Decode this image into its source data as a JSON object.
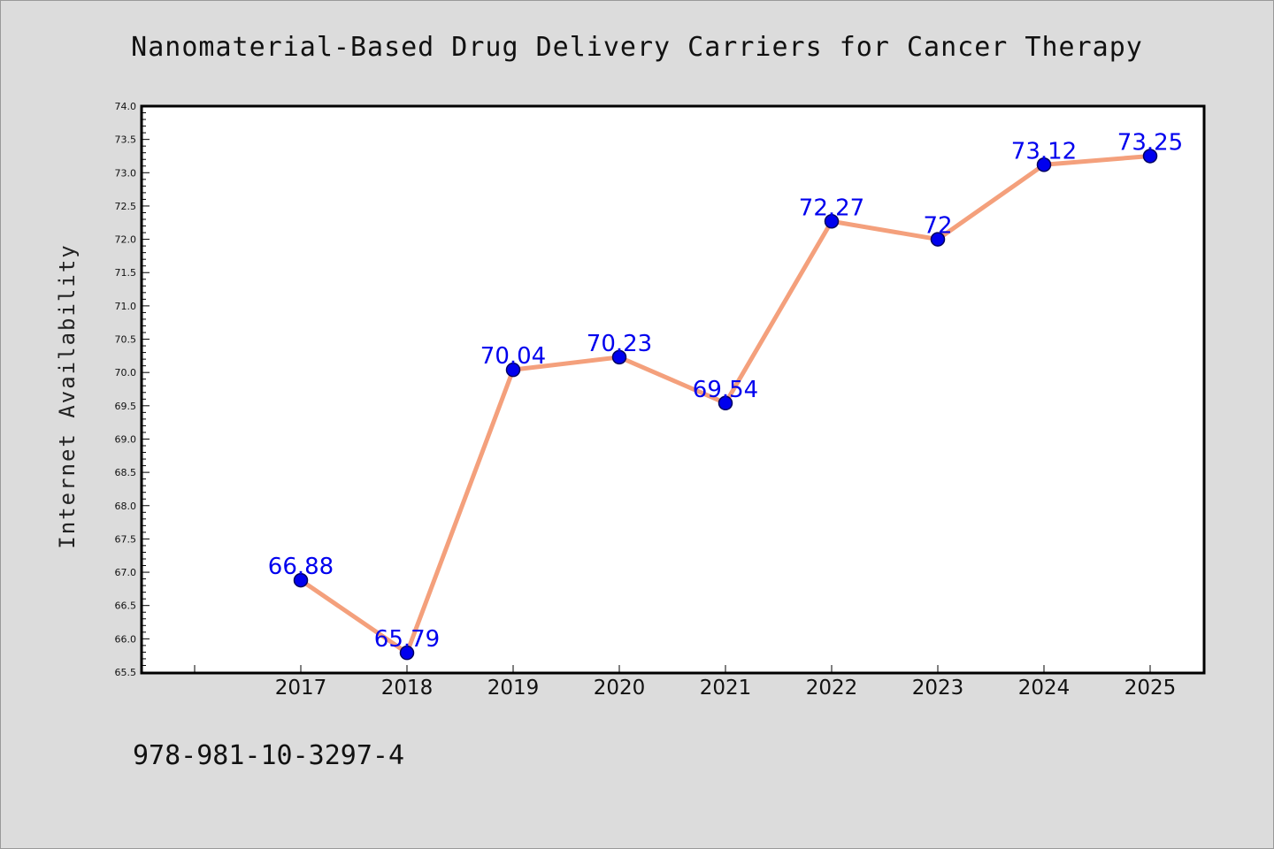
{
  "chart_data": {
    "type": "line",
    "title": "Nanomaterial-Based Drug Delivery Carriers for Cancer Therapy",
    "xlabel": "",
    "ylabel": "Internet Availability",
    "categories": [
      "2017",
      "2018",
      "2019",
      "2020",
      "2021",
      "2022",
      "2023",
      "2024",
      "2025"
    ],
    "series": [
      {
        "values": [
          66.88,
          65.79,
          70.04,
          70.23,
          69.54,
          72.27,
          72,
          73.12,
          73.25
        ],
        "labels": [
          "66.88",
          "65.79",
          "70.04",
          "70.23",
          "69.54",
          "72.27",
          "72",
          "73.12",
          "73.25"
        ]
      }
    ],
    "ylim": [
      65.5,
      74.0
    ],
    "yticks": [
      "65.5",
      "66.0",
      "66.5",
      "67.0",
      "67.5",
      "68.0",
      "68.5",
      "69.0",
      "69.5",
      "70.0",
      "70.5",
      "71.0",
      "71.5",
      "72.0",
      "72.5",
      "73.0",
      "73.5",
      "74.0"
    ],
    "grid": false,
    "legend": "none",
    "colors": {
      "line": "#f4a07c",
      "marker_fill": "#0000ee",
      "marker_edge": "#000060",
      "point_label": "#0000ee",
      "background": "#dcdcdc",
      "plot_background": "#ffffff"
    }
  },
  "footer": {
    "isbn": "978-981-10-3297-4"
  }
}
